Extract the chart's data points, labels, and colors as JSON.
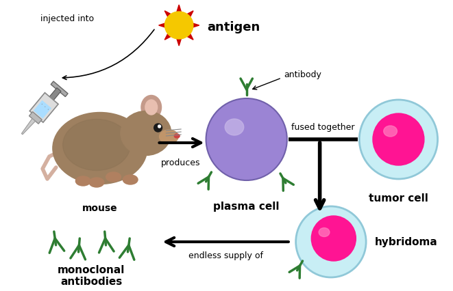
{
  "bg_color": "#ffffff",
  "antigen_star_color": "#cc0000",
  "antigen_inner_color": "#f5c800",
  "antigen_label": "antigen",
  "injected_into_text": "injected into",
  "mouse_label": "mouse",
  "mouse_body_color": "#8c7355",
  "mouse_body_color2": "#9e8060",
  "mouse_ear_color": "#c49a8a",
  "mouse_ear_inner_color": "#e8bfb0",
  "mouse_tail_color": "#d4b0a0",
  "plasma_cell_label": "plasma cell",
  "plasma_cell_color": "#9b84d4",
  "plasma_cell_edge": "#7060aa",
  "antibody_label": "antibody",
  "antibody_color": "#2e7d32",
  "produces_label": "produces",
  "tumor_cell_label": "tumor cell",
  "tumor_outer_color": "#c8eef5",
  "tumor_outer_edge": "#90c8d8",
  "tumor_inner_color": "#ff1493",
  "fused_together_label": "fused together",
  "hybridoma_label": "hybridoma",
  "hybridoma_outer_color": "#c8eef5",
  "hybridoma_outer_edge": "#90c8d8",
  "hybridoma_inner_color": "#ff1493",
  "monoclonal_label1": "monoclonal",
  "monoclonal_label2": "antibodies",
  "endless_supply_label": "endless supply of",
  "arrow_color": "#000000"
}
